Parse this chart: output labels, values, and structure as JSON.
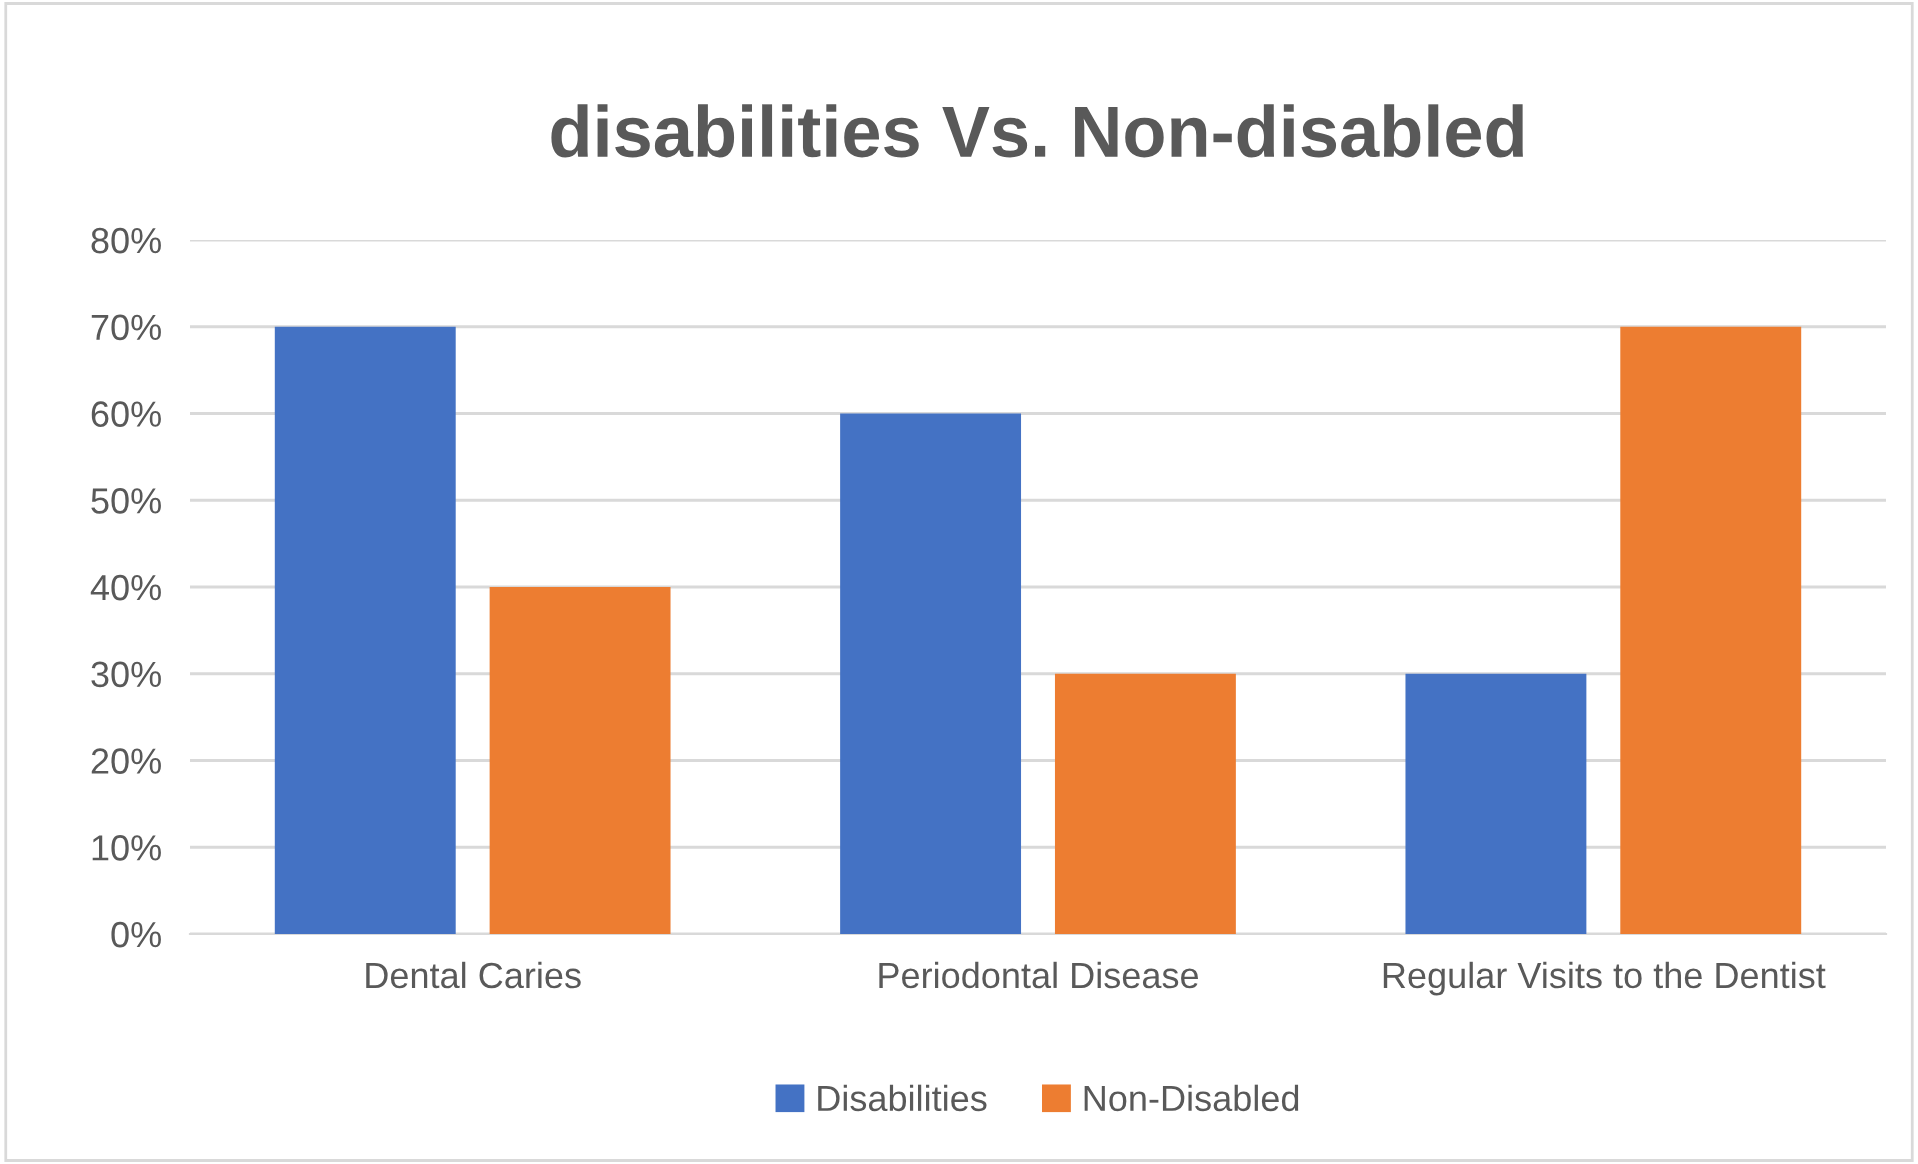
{
  "chart_data": {
    "type": "bar",
    "title": "disabilities Vs. Non-disabled",
    "categories": [
      "Dental Caries",
      "Periodontal Disease",
      "Regular Visits to the Dentist"
    ],
    "series": [
      {
        "name": "Disabilities",
        "color": "#4472c4",
        "values": [
          70,
          60,
          30
        ]
      },
      {
        "name": "Non-Disabled",
        "color": "#ed7d31",
        "values": [
          40,
          30,
          70
        ]
      }
    ],
    "ylim": [
      0,
      80
    ],
    "yticks": [
      {
        "value": 0,
        "label": "0%"
      },
      {
        "value": 10,
        "label": "10%"
      },
      {
        "value": 20,
        "label": "20%"
      },
      {
        "value": 30,
        "label": "30%"
      },
      {
        "value": 40,
        "label": "40%"
      },
      {
        "value": 50,
        "label": "50%"
      },
      {
        "value": 60,
        "label": "60%"
      },
      {
        "value": 70,
        "label": "70%"
      },
      {
        "value": 80,
        "label": "80%"
      }
    ],
    "grid": "y",
    "legend": "bottom"
  }
}
